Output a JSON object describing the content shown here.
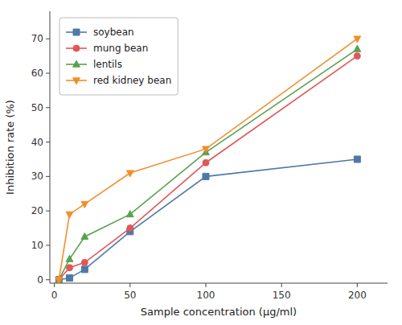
{
  "chart_data": {
    "type": "line",
    "xlabel": "Sample concentration (μg/ml)",
    "ylabel": "Inhibition rate (%)",
    "x": [
      3,
      10,
      20,
      50,
      100,
      200
    ],
    "series": [
      {
        "name": "soybean",
        "marker": "square",
        "values": [
          0,
          0.5,
          3.0,
          14.0,
          30.0,
          35.0
        ]
      },
      {
        "name": "mung bean",
        "marker": "circle",
        "values": [
          0,
          3.5,
          5.0,
          15.0,
          34.0,
          65.0
        ]
      },
      {
        "name": "lentils",
        "marker": "triangle-up",
        "values": [
          0,
          6.0,
          12.5,
          19.0,
          37.0,
          67.0
        ]
      },
      {
        "name": "red kidney bean",
        "marker": "triangle-down",
        "values": [
          0,
          19.0,
          22.0,
          31.0,
          38.0,
          70.0
        ]
      }
    ],
    "xlim": [
      -3,
      220
    ],
    "ylim": [
      -1,
      78
    ],
    "xticks": [
      0,
      50,
      100,
      150,
      200
    ],
    "yticks": [
      0,
      10,
      20,
      30,
      40,
      50,
      60,
      70
    ],
    "grid": false,
    "legend": "upper left"
  }
}
